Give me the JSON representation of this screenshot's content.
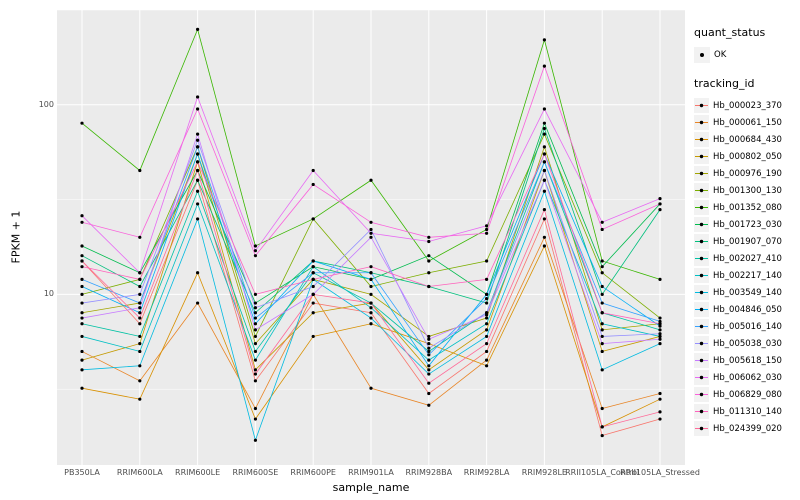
{
  "legend": {
    "quant_status_title": "quant_status",
    "quant_status_items": [
      {
        "label": "OK",
        "marker": "point",
        "color": "#000000"
      }
    ],
    "tracking_id_title": "tracking_id"
  },
  "colors": {
    "panel_bg": "#EBEBEB",
    "grid": "#FFFFFF",
    "point": "#000000",
    "legend_key_bg": "#F2F2F2",
    "axis_text": "#4D4D4D"
  },
  "chart_data": {
    "type": "line",
    "title": "",
    "xlabel": "sample_name",
    "ylabel": "FPKM + 1",
    "y_scale": "log10",
    "y_ticks": [
      10,
      100
    ],
    "minor_ticks_log": [
      0.5,
      1.5,
      2.5
    ],
    "ylim_log": [
      0.1,
      2.5
    ],
    "grid": true,
    "legend_position": "right",
    "point_marker": "filled-circle-black",
    "categories": [
      "PB350LA",
      "RRIM600LA",
      "RRIM600LE",
      "RRIM600SE",
      "RRIM600PE",
      "RRIM901LA",
      "RRIM928BA",
      "RRIM928LA",
      "RRIM928LE",
      "RRII105LA_Control",
      "RRII105LA_Stressed"
    ],
    "series": [
      {
        "name": "Hb_000023_370",
        "color": "#F8766D",
        "values": [
          15,
          7,
          40,
          3.5,
          9,
          8,
          3,
          5,
          25,
          1.8,
          2.2
        ]
      },
      {
        "name": "Hb_000061_150",
        "color": "#E88526",
        "values": [
          5,
          3.5,
          9,
          2.5,
          10,
          3.2,
          2.6,
          4.5,
          20,
          2.5,
          3
        ]
      },
      {
        "name": "Hb_000684_430",
        "color": "#D89000",
        "values": [
          3.2,
          2.8,
          13,
          2.2,
          6,
          7,
          5.5,
          4.2,
          18,
          2,
          2.8
        ]
      },
      {
        "name": "Hb_000802_050",
        "color": "#C49A00",
        "values": [
          4.5,
          5.5,
          50,
          4,
          8,
          9,
          4,
          6.5,
          45,
          5,
          6
        ]
      },
      {
        "name": "Hb_000976_190",
        "color": "#A3A500",
        "values": [
          8,
          9,
          55,
          5.5,
          12,
          10,
          6,
          7.5,
          60,
          6.5,
          7
        ]
      },
      {
        "name": "Hb_001300_130",
        "color": "#7CAE00",
        "values": [
          10,
          12,
          60,
          6,
          25,
          11,
          13,
          15,
          70,
          13,
          7.5
        ]
      },
      {
        "name": "Hb_001352_080",
        "color": "#39B600",
        "values": [
          80,
          45,
          250,
          18,
          25,
          40,
          15,
          22,
          220,
          15,
          12
        ]
      },
      {
        "name": "Hb_001723_030",
        "color": "#00BB4E",
        "values": [
          18,
          13,
          45,
          9,
          14,
          12,
          16,
          10,
          80,
          14,
          30
        ]
      },
      {
        "name": "Hb_001907_070",
        "color": "#00BF7D",
        "values": [
          16,
          11,
          40,
          8,
          15,
          13,
          11,
          9,
          75,
          10,
          28
        ]
      },
      {
        "name": "Hb_002027_410",
        "color": "#00C1A3",
        "values": [
          7,
          6,
          35,
          5,
          13,
          9,
          5,
          8,
          50,
          8,
          6.5
        ]
      },
      {
        "name": "Hb_002217_140",
        "color": "#00BFC4",
        "values": [
          6,
          5,
          30,
          4.5,
          14,
          8.5,
          4.5,
          7,
          40,
          7,
          6
        ]
      },
      {
        "name": "Hb_003549_140",
        "color": "#00BAE0",
        "values": [
          4,
          4.2,
          25,
          1.7,
          12,
          7.5,
          3.8,
          6,
          35,
          4,
          5.5
        ]
      },
      {
        "name": "Hb_004846_050",
        "color": "#00B0F6",
        "values": [
          11,
          8,
          55,
          7,
          15,
          12,
          4.2,
          10,
          55,
          11,
          6.8
        ]
      },
      {
        "name": "Hb_005016_140",
        "color": "#35A2FF",
        "values": [
          12,
          9,
          60,
          7.5,
          13,
          13,
          4.8,
          9.5,
          50,
          9,
          7.2
        ]
      },
      {
        "name": "Hb_005038_030",
        "color": "#9590FF",
        "values": [
          9,
          10,
          65,
          8.5,
          11,
          22,
          5.2,
          8,
          45,
          6,
          6.2
        ]
      },
      {
        "name": "Hb_005618_150",
        "color": "#C77CFF",
        "values": [
          7.5,
          8.5,
          70,
          6.5,
          10,
          20,
          5.8,
          7.8,
          40,
          5.5,
          5.8
        ]
      },
      {
        "name": "Hb_006062_030",
        "color": "#E76BF3",
        "values": [
          26,
          13,
          110,
          17,
          45,
          21,
          19,
          23,
          95,
          24,
          32
        ]
      },
      {
        "name": "Hb_006829_080",
        "color": "#FA62DB",
        "values": [
          24,
          20,
          95,
          16,
          38,
          24,
          20,
          21,
          160,
          22,
          30
        ]
      },
      {
        "name": "Hb_011310_140",
        "color": "#FF62BC",
        "values": [
          14,
          12,
          50,
          10,
          12,
          14,
          11,
          12,
          55,
          8,
          7
        ]
      },
      {
        "name": "Hb_024399_020",
        "color": "#FF6A98",
        "values": [
          15,
          7.5,
          45,
          3.8,
          10,
          9,
          3.4,
          5.5,
          28,
          2,
          2.4
        ]
      }
    ]
  }
}
